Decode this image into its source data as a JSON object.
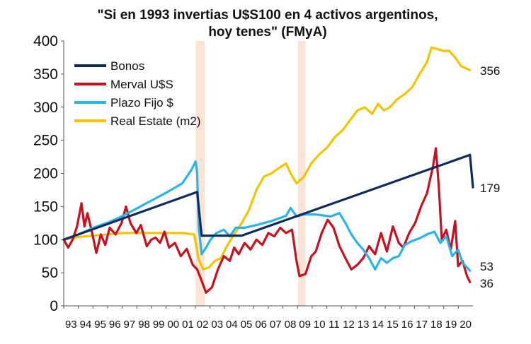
{
  "chart_data": {
    "type": "line",
    "title_line1": "\"Si en 1993 invertias U$S100 en 4 activos argentinos,",
    "title_line2": "hoy  tenes\" (FMyA)",
    "ylim": [
      0,
      400
    ],
    "yticks": [
      0,
      50,
      100,
      150,
      200,
      250,
      300,
      350,
      400
    ],
    "xlim": [
      1993,
      2020.6
    ],
    "xtick_labels": [
      "93",
      "94",
      "95",
      "96",
      "97",
      "98",
      "99",
      "00",
      "01",
      "02",
      "03",
      "04",
      "05",
      "06",
      "07",
      "08",
      "09",
      "10",
      "11",
      "12",
      "13",
      "14",
      "15",
      "16",
      "17",
      "18",
      "19",
      "20"
    ],
    "shaded_periods": [
      [
        2001.9,
        2002.5
      ],
      [
        2008.8,
        2009.3
      ]
    ],
    "shade_color": "#fbe3d6",
    "legend_position": "top-left",
    "series": [
      {
        "name": "Bonos",
        "color": "#0f2a5c",
        "end_label": "179",
        "points": [
          [
            1993,
            100
          ],
          [
            2002.0,
            172
          ],
          [
            2002.3,
            106
          ],
          [
            2005.0,
            106
          ],
          [
            2020.4,
            228
          ],
          [
            2020.6,
            179
          ]
        ]
      },
      {
        "name": "Merval U$S",
        "color": "#c8101e",
        "end_label": "36",
        "points": [
          [
            1993,
            100
          ],
          [
            1993.3,
            88
          ],
          [
            1993.6,
            100
          ],
          [
            1993.9,
            120
          ],
          [
            1994.2,
            155
          ],
          [
            1994.4,
            120
          ],
          [
            1994.6,
            140
          ],
          [
            1994.9,
            112
          ],
          [
            1995.2,
            80
          ],
          [
            1995.5,
            108
          ],
          [
            1995.8,
            92
          ],
          [
            1996.1,
            118
          ],
          [
            1996.5,
            108
          ],
          [
            1996.9,
            125
          ],
          [
            1997.2,
            150
          ],
          [
            1997.5,
            125
          ],
          [
            1997.9,
            110
          ],
          [
            1998.2,
            122
          ],
          [
            1998.6,
            90
          ],
          [
            1998.9,
            100
          ],
          [
            1999.2,
            103
          ],
          [
            1999.5,
            95
          ],
          [
            1999.8,
            112
          ],
          [
            2000.1,
            88
          ],
          [
            2000.5,
            95
          ],
          [
            2000.9,
            75
          ],
          [
            2001.3,
            86
          ],
          [
            2001.7,
            62
          ],
          [
            2002.0,
            55
          ],
          [
            2002.3,
            38
          ],
          [
            2002.6,
            20
          ],
          [
            2003.0,
            28
          ],
          [
            2003.4,
            55
          ],
          [
            2003.8,
            75
          ],
          [
            2004.2,
            68
          ],
          [
            2004.5,
            88
          ],
          [
            2004.8,
            78
          ],
          [
            2005.2,
            95
          ],
          [
            2005.6,
            85
          ],
          [
            2006.0,
            100
          ],
          [
            2006.4,
            92
          ],
          [
            2006.8,
            110
          ],
          [
            2007.2,
            105
          ],
          [
            2007.6,
            118
          ],
          [
            2008.0,
            110
          ],
          [
            2008.4,
            115
          ],
          [
            2008.7,
            68
          ],
          [
            2008.9,
            45
          ],
          [
            2009.3,
            48
          ],
          [
            2009.7,
            75
          ],
          [
            2010.0,
            82
          ],
          [
            2010.4,
            110
          ],
          [
            2010.8,
            130
          ],
          [
            2011.2,
            118
          ],
          [
            2011.6,
            90
          ],
          [
            2012.0,
            72
          ],
          [
            2012.4,
            55
          ],
          [
            2012.8,
            62
          ],
          [
            2013.2,
            72
          ],
          [
            2013.6,
            90
          ],
          [
            2014.0,
            78
          ],
          [
            2014.4,
            110
          ],
          [
            2014.8,
            82
          ],
          [
            2015.2,
            120
          ],
          [
            2015.6,
            95
          ],
          [
            2015.9,
            88
          ],
          [
            2016.3,
            110
          ],
          [
            2016.7,
            125
          ],
          [
            2017.1,
            150
          ],
          [
            2017.5,
            170
          ],
          [
            2017.9,
            210
          ],
          [
            2018.1,
            238
          ],
          [
            2018.3,
            180
          ],
          [
            2018.5,
            100
          ],
          [
            2018.8,
            115
          ],
          [
            2019.1,
            85
          ],
          [
            2019.4,
            128
          ],
          [
            2019.6,
            60
          ],
          [
            2019.9,
            68
          ],
          [
            2020.2,
            45
          ],
          [
            2020.4,
            36
          ]
        ]
      },
      {
        "name": "Plazo Fijo $",
        "color": "#2ab4ea",
        "end_label": "53",
        "points": [
          [
            1993,
            100
          ],
          [
            1994,
            108
          ],
          [
            1995,
            118
          ],
          [
            1996,
            126
          ],
          [
            1997,
            136
          ],
          [
            1998,
            148
          ],
          [
            1999,
            160
          ],
          [
            2000,
            172
          ],
          [
            2001,
            185
          ],
          [
            2001.6,
            205
          ],
          [
            2001.9,
            218
          ],
          [
            2002.0,
            200
          ],
          [
            2002.1,
            120
          ],
          [
            2002.3,
            78
          ],
          [
            2002.6,
            88
          ],
          [
            2002.9,
            100
          ],
          [
            2003.3,
            110
          ],
          [
            2003.8,
            115
          ],
          [
            2004.2,
            105
          ],
          [
            2004.6,
            118
          ],
          [
            2005.2,
            118
          ],
          [
            2006,
            122
          ],
          [
            2007,
            128
          ],
          [
            2008,
            136
          ],
          [
            2008.3,
            148
          ],
          [
            2008.7,
            135
          ],
          [
            2009.2,
            138
          ],
          [
            2010,
            138
          ],
          [
            2011,
            135
          ],
          [
            2011.6,
            140
          ],
          [
            2012.0,
            125
          ],
          [
            2012.4,
            108
          ],
          [
            2012.8,
            95
          ],
          [
            2013.2,
            85
          ],
          [
            2013.6,
            72
          ],
          [
            2014.0,
            55
          ],
          [
            2014.4,
            72
          ],
          [
            2014.8,
            65
          ],
          [
            2015.2,
            72
          ],
          [
            2015.6,
            75
          ],
          [
            2016.0,
            92
          ],
          [
            2016.5,
            98
          ],
          [
            2017.0,
            102
          ],
          [
            2017.5,
            108
          ],
          [
            2018.0,
            112
          ],
          [
            2018.4,
            95
          ],
          [
            2018.8,
            105
          ],
          [
            2019.2,
            75
          ],
          [
            2019.6,
            85
          ],
          [
            2019.9,
            65
          ],
          [
            2020.2,
            58
          ],
          [
            2020.4,
            53
          ]
        ]
      },
      {
        "name": "Real Estate (m2)",
        "color": "#f4c400",
        "end_label": "356",
        "points": [
          [
            1993,
            100
          ],
          [
            1994,
            104
          ],
          [
            1995,
            106
          ],
          [
            1996,
            108
          ],
          [
            1997,
            110
          ],
          [
            1998,
            110
          ],
          [
            1999,
            110
          ],
          [
            2000,
            110
          ],
          [
            2001,
            110
          ],
          [
            2001.8,
            108
          ],
          [
            2002.1,
            70
          ],
          [
            2002.4,
            55
          ],
          [
            2002.8,
            58
          ],
          [
            2003.2,
            68
          ],
          [
            2003.6,
            72
          ],
          [
            2004.0,
            90
          ],
          [
            2004.5,
            108
          ],
          [
            2005.0,
            125
          ],
          [
            2005.5,
            145
          ],
          [
            2006.0,
            175
          ],
          [
            2006.5,
            195
          ],
          [
            2007.0,
            200
          ],
          [
            2007.5,
            208
          ],
          [
            2008.0,
            215
          ],
          [
            2008.3,
            200
          ],
          [
            2008.7,
            185
          ],
          [
            2009.2,
            195
          ],
          [
            2009.7,
            215
          ],
          [
            2010.2,
            228
          ],
          [
            2010.8,
            240
          ],
          [
            2011.3,
            255
          ],
          [
            2011.8,
            265
          ],
          [
            2012.3,
            280
          ],
          [
            2012.8,
            295
          ],
          [
            2013.3,
            300
          ],
          [
            2013.8,
            290
          ],
          [
            2014.2,
            305
          ],
          [
            2014.6,
            295
          ],
          [
            2015.0,
            300
          ],
          [
            2015.5,
            312
          ],
          [
            2016.0,
            320
          ],
          [
            2016.5,
            330
          ],
          [
            2017.0,
            350
          ],
          [
            2017.5,
            368
          ],
          [
            2017.8,
            390
          ],
          [
            2018.2,
            388
          ],
          [
            2018.6,
            385
          ],
          [
            2019.0,
            385
          ],
          [
            2019.4,
            375
          ],
          [
            2019.8,
            362
          ],
          [
            2020.2,
            358
          ],
          [
            2020.4,
            356
          ]
        ]
      }
    ]
  }
}
